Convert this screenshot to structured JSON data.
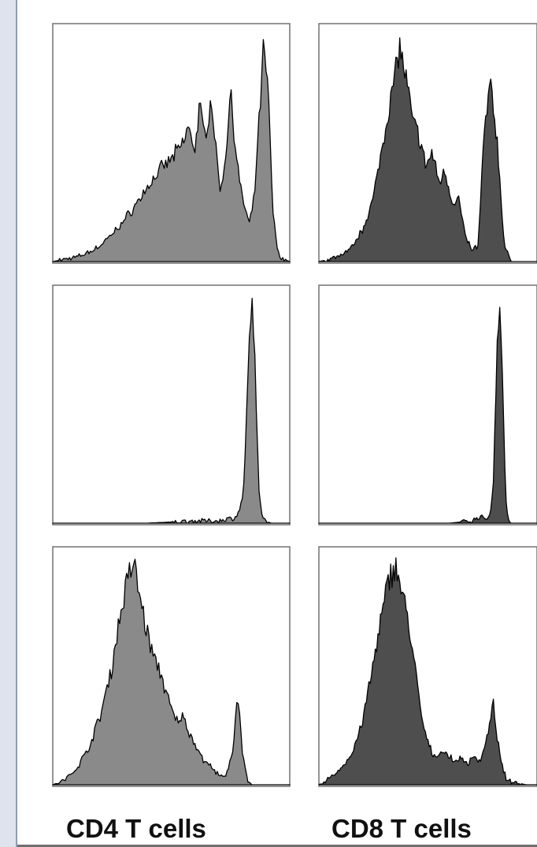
{
  "chart_data": {
    "type": "area",
    "title": "",
    "xlabel": "",
    "ylabel": "",
    "layout": "3 rows x 2 columns of flow cytometry histograms",
    "grid": false,
    "legend": "none",
    "column_labels": [
      "CD4 T cells",
      "CD8 T cells"
    ],
    "x_range": [
      0,
      1
    ],
    "y_range": [
      0,
      1
    ],
    "panels": [
      {
        "row": 1,
        "column": "CD4 T cells",
        "fill_color": "#8a8a8a",
        "x": [
          0.0,
          0.05,
          0.1,
          0.15,
          0.2,
          0.25,
          0.3,
          0.35,
          0.4,
          0.45,
          0.5,
          0.55,
          0.57,
          0.6,
          0.62,
          0.64,
          0.67,
          0.69,
          0.71,
          0.73,
          0.75,
          0.77,
          0.79,
          0.81,
          0.83,
          0.85,
          0.87,
          0.89,
          0.91,
          0.93,
          0.95,
          0.97,
          1.0
        ],
        "y": [
          0.0,
          0.01,
          0.02,
          0.04,
          0.07,
          0.12,
          0.18,
          0.25,
          0.33,
          0.4,
          0.45,
          0.52,
          0.59,
          0.5,
          0.68,
          0.55,
          0.72,
          0.47,
          0.3,
          0.48,
          0.75,
          0.52,
          0.33,
          0.24,
          0.16,
          0.28,
          0.6,
          0.95,
          0.72,
          0.2,
          0.04,
          0.01,
          0.0
        ]
      },
      {
        "row": 1,
        "column": "CD8 T cells",
        "fill_color": "#4e4e4e",
        "x": [
          0.0,
          0.05,
          0.1,
          0.15,
          0.2,
          0.25,
          0.28,
          0.31,
          0.34,
          0.37,
          0.4,
          0.43,
          0.46,
          0.49,
          0.52,
          0.55,
          0.58,
          0.61,
          0.64,
          0.67,
          0.7,
          0.73,
          0.76,
          0.79,
          0.82,
          0.85,
          0.88,
          0.91,
          0.94,
          0.97,
          1.0
        ],
        "y": [
          0.0,
          0.01,
          0.03,
          0.06,
          0.14,
          0.28,
          0.45,
          0.62,
          0.77,
          0.95,
          0.8,
          0.62,
          0.55,
          0.42,
          0.48,
          0.35,
          0.4,
          0.26,
          0.28,
          0.12,
          0.05,
          0.07,
          0.6,
          0.78,
          0.5,
          0.07,
          0.0,
          0.0,
          0.0,
          0.0,
          0.0
        ]
      },
      {
        "row": 2,
        "column": "CD4 T cells",
        "fill_color": "#8a8a8a",
        "x": [
          0.0,
          0.2,
          0.4,
          0.6,
          0.7,
          0.74,
          0.76,
          0.78,
          0.8,
          0.81,
          0.82,
          0.83,
          0.84,
          0.85,
          0.86,
          0.87,
          0.88,
          0.9,
          0.92,
          1.0
        ],
        "y": [
          0.0,
          0.0,
          0.0,
          0.01,
          0.01,
          0.02,
          0.02,
          0.04,
          0.1,
          0.25,
          0.55,
          0.8,
          0.97,
          0.8,
          0.45,
          0.15,
          0.04,
          0.01,
          0.0,
          0.0
        ]
      },
      {
        "row": 2,
        "column": "CD8 T cells",
        "fill_color": "#4e4e4e",
        "x": [
          0.0,
          0.2,
          0.4,
          0.6,
          0.7,
          0.74,
          0.77,
          0.79,
          0.8,
          0.81,
          0.82,
          0.83,
          0.84,
          0.85,
          0.86,
          0.87,
          0.88,
          0.9,
          1.0
        ],
        "y": [
          0.0,
          0.0,
          0.0,
          0.0,
          0.01,
          0.03,
          0.02,
          0.06,
          0.2,
          0.5,
          0.85,
          0.98,
          0.75,
          0.3,
          0.06,
          0.01,
          0.0,
          0.0,
          0.0
        ]
      },
      {
        "row": 3,
        "column": "CD4 T cells",
        "fill_color": "#8a8a8a",
        "x": [
          0.0,
          0.05,
          0.1,
          0.15,
          0.2,
          0.25,
          0.28,
          0.31,
          0.34,
          0.37,
          0.4,
          0.43,
          0.46,
          0.49,
          0.52,
          0.55,
          0.58,
          0.61,
          0.64,
          0.67,
          0.7,
          0.73,
          0.76,
          0.78,
          0.8,
          0.82,
          0.84,
          0.86,
          0.9,
          1.0
        ],
        "y": [
          0.0,
          0.02,
          0.07,
          0.16,
          0.3,
          0.52,
          0.72,
          0.88,
          0.98,
          0.82,
          0.66,
          0.55,
          0.48,
          0.36,
          0.28,
          0.3,
          0.22,
          0.16,
          0.1,
          0.08,
          0.04,
          0.03,
          0.15,
          0.42,
          0.15,
          0.02,
          0.0,
          0.0,
          0.0,
          0.0
        ]
      },
      {
        "row": 3,
        "column": "CD8 T cells",
        "fill_color": "#4e4e4e",
        "x": [
          0.0,
          0.05,
          0.1,
          0.15,
          0.2,
          0.24,
          0.28,
          0.32,
          0.35,
          0.38,
          0.41,
          0.44,
          0.47,
          0.5,
          0.53,
          0.56,
          0.59,
          0.62,
          0.65,
          0.68,
          0.71,
          0.74,
          0.77,
          0.8,
          0.83,
          0.86,
          0.9,
          0.95,
          1.0
        ],
        "y": [
          0.0,
          0.03,
          0.07,
          0.13,
          0.28,
          0.48,
          0.7,
          0.9,
          0.98,
          0.85,
          0.72,
          0.52,
          0.3,
          0.18,
          0.12,
          0.15,
          0.13,
          0.1,
          0.12,
          0.09,
          0.13,
          0.1,
          0.2,
          0.35,
          0.12,
          0.02,
          0.01,
          0.0,
          0.0
        ]
      }
    ]
  }
}
